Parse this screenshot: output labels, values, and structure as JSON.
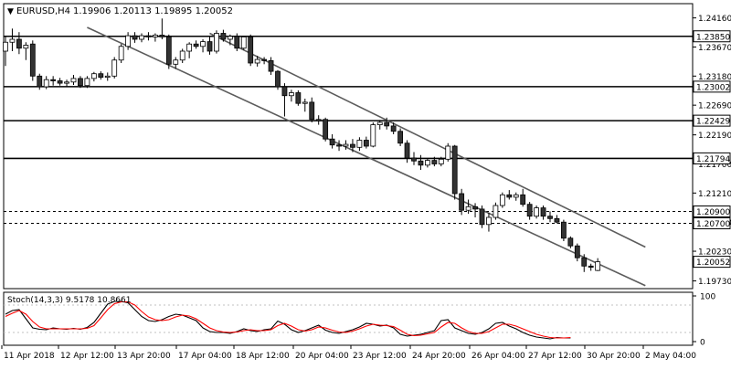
{
  "header": {
    "symbol_label": "EURUSD,H4",
    "ohlc": "1.19906 1.20113 1.19895 1.20052",
    "menu_glyph": "▼"
  },
  "chart_data": [
    {
      "type": "candlestick",
      "symbol": "EURUSD",
      "timeframe": "H4",
      "ylim": [
        1.196,
        1.244
      ],
      "y_ticks": [
        "1.24160",
        "1.23670",
        "1.23180",
        "1.22690",
        "1.22190",
        "1.21700",
        "1.21210",
        "1.20720",
        "1.20230",
        "1.19730"
      ],
      "x_ticks": [
        "11 Apr 2018",
        "12 Apr 12:00",
        "13 Apr 20:00",
        "17 Apr 04:00",
        "18 Apr 12:00",
        "20 Apr 04:00",
        "23 Apr 12:00",
        "24 Apr 20:00",
        "26 Apr 04:00",
        "27 Apr 12:00",
        "30 Apr 20:00",
        "2 May 04:00"
      ],
      "candles": [
        {
          "o": 1.236,
          "h": 1.2385,
          "l": 1.2335,
          "c": 1.2375
        },
        {
          "o": 1.2375,
          "h": 1.2398,
          "l": 1.236,
          "c": 1.238
        },
        {
          "o": 1.238,
          "h": 1.2392,
          "l": 1.2355,
          "c": 1.2365
        },
        {
          "o": 1.2365,
          "h": 1.2375,
          "l": 1.2345,
          "c": 1.237
        },
        {
          "o": 1.2372,
          "h": 1.2378,
          "l": 1.231,
          "c": 1.2318
        },
        {
          "o": 1.2318,
          "h": 1.2322,
          "l": 1.2295,
          "c": 1.23
        },
        {
          "o": 1.23,
          "h": 1.2318,
          "l": 1.2296,
          "c": 1.2312
        },
        {
          "o": 1.2312,
          "h": 1.2318,
          "l": 1.2302,
          "c": 1.231
        },
        {
          "o": 1.231,
          "h": 1.2315,
          "l": 1.2302,
          "c": 1.2306
        },
        {
          "o": 1.2306,
          "h": 1.2312,
          "l": 1.23,
          "c": 1.2308
        },
        {
          "o": 1.2308,
          "h": 1.232,
          "l": 1.2303,
          "c": 1.2314
        },
        {
          "o": 1.2314,
          "h": 1.2318,
          "l": 1.2298,
          "c": 1.2302
        },
        {
          "o": 1.2302,
          "h": 1.2318,
          "l": 1.2298,
          "c": 1.2314
        },
        {
          "o": 1.2314,
          "h": 1.2325,
          "l": 1.2309,
          "c": 1.2322
        },
        {
          "o": 1.2322,
          "h": 1.2326,
          "l": 1.2312,
          "c": 1.2316
        },
        {
          "o": 1.2316,
          "h": 1.2324,
          "l": 1.231,
          "c": 1.2318
        },
        {
          "o": 1.2318,
          "h": 1.235,
          "l": 1.2314,
          "c": 1.2345
        },
        {
          "o": 1.2345,
          "h": 1.2372,
          "l": 1.234,
          "c": 1.2368
        },
        {
          "o": 1.2368,
          "h": 1.2392,
          "l": 1.2362,
          "c": 1.2386
        },
        {
          "o": 1.2386,
          "h": 1.2392,
          "l": 1.2374,
          "c": 1.238
        },
        {
          "o": 1.238,
          "h": 1.239,
          "l": 1.2375,
          "c": 1.2386
        },
        {
          "o": 1.2386,
          "h": 1.2392,
          "l": 1.2378,
          "c": 1.2384
        },
        {
          "o": 1.2384,
          "h": 1.239,
          "l": 1.2376,
          "c": 1.2387
        },
        {
          "o": 1.2387,
          "h": 1.2415,
          "l": 1.238,
          "c": 1.2384
        },
        {
          "o": 1.2384,
          "h": 1.2388,
          "l": 1.233,
          "c": 1.2338
        },
        {
          "o": 1.2338,
          "h": 1.235,
          "l": 1.233,
          "c": 1.2345
        },
        {
          "o": 1.2345,
          "h": 1.2364,
          "l": 1.234,
          "c": 1.236
        },
        {
          "o": 1.236,
          "h": 1.2375,
          "l": 1.2348,
          "c": 1.2372
        },
        {
          "o": 1.2372,
          "h": 1.2378,
          "l": 1.2364,
          "c": 1.2368
        },
        {
          "o": 1.2368,
          "h": 1.238,
          "l": 1.2358,
          "c": 1.2376
        },
        {
          "o": 1.2376,
          "h": 1.2384,
          "l": 1.2354,
          "c": 1.236
        },
        {
          "o": 1.236,
          "h": 1.2395,
          "l": 1.2356,
          "c": 1.239
        },
        {
          "o": 1.239,
          "h": 1.2396,
          "l": 1.2376,
          "c": 1.238
        },
        {
          "o": 1.238,
          "h": 1.2388,
          "l": 1.237,
          "c": 1.2385
        },
        {
          "o": 1.2385,
          "h": 1.239,
          "l": 1.236,
          "c": 1.2365
        },
        {
          "o": 1.2365,
          "h": 1.2384,
          "l": 1.2362,
          "c": 1.2384
        },
        {
          "o": 1.2384,
          "h": 1.2388,
          "l": 1.2335,
          "c": 1.234
        },
        {
          "o": 1.234,
          "h": 1.2352,
          "l": 1.2334,
          "c": 1.2346
        },
        {
          "o": 1.2346,
          "h": 1.235,
          "l": 1.2338,
          "c": 1.2344
        },
        {
          "o": 1.2344,
          "h": 1.235,
          "l": 1.232,
          "c": 1.2326
        },
        {
          "o": 1.2326,
          "h": 1.2328,
          "l": 1.2295,
          "c": 1.23
        },
        {
          "o": 1.23,
          "h": 1.2306,
          "l": 1.225,
          "c": 1.2285
        },
        {
          "o": 1.2285,
          "h": 1.2295,
          "l": 1.2275,
          "c": 1.229
        },
        {
          "o": 1.229,
          "h": 1.2294,
          "l": 1.2268,
          "c": 1.2272
        },
        {
          "o": 1.2272,
          "h": 1.228,
          "l": 1.2258,
          "c": 1.2274
        },
        {
          "o": 1.2274,
          "h": 1.2282,
          "l": 1.224,
          "c": 1.2245
        },
        {
          "o": 1.2245,
          "h": 1.2252,
          "l": 1.2236,
          "c": 1.2245
        },
        {
          "o": 1.2245,
          "h": 1.2248,
          "l": 1.2208,
          "c": 1.2212
        },
        {
          "o": 1.2212,
          "h": 1.222,
          "l": 1.2196,
          "c": 1.2202
        },
        {
          "o": 1.2202,
          "h": 1.221,
          "l": 1.2192,
          "c": 1.22
        },
        {
          "o": 1.22,
          "h": 1.221,
          "l": 1.2194,
          "c": 1.2203
        },
        {
          "o": 1.2203,
          "h": 1.2212,
          "l": 1.219,
          "c": 1.2198
        },
        {
          "o": 1.2198,
          "h": 1.2215,
          "l": 1.2192,
          "c": 1.221
        },
        {
          "o": 1.221,
          "h": 1.2216,
          "l": 1.2196,
          "c": 1.22
        },
        {
          "o": 1.22,
          "h": 1.224,
          "l": 1.2198,
          "c": 1.2236
        },
        {
          "o": 1.2236,
          "h": 1.2244,
          "l": 1.2228,
          "c": 1.224
        },
        {
          "o": 1.224,
          "h": 1.2248,
          "l": 1.2228,
          "c": 1.2234
        },
        {
          "o": 1.2234,
          "h": 1.224,
          "l": 1.222,
          "c": 1.2225
        },
        {
          "o": 1.2225,
          "h": 1.223,
          "l": 1.22,
          "c": 1.2205
        },
        {
          "o": 1.2205,
          "h": 1.221,
          "l": 1.2172,
          "c": 1.218
        },
        {
          "o": 1.218,
          "h": 1.219,
          "l": 1.2168,
          "c": 1.2175
        },
        {
          "o": 1.2175,
          "h": 1.2185,
          "l": 1.216,
          "c": 1.2168
        },
        {
          "o": 1.2168,
          "h": 1.218,
          "l": 1.2164,
          "c": 1.2176
        },
        {
          "o": 1.2176,
          "h": 1.2182,
          "l": 1.2166,
          "c": 1.217
        },
        {
          "o": 1.217,
          "h": 1.2182,
          "l": 1.2166,
          "c": 1.2178
        },
        {
          "o": 1.2178,
          "h": 1.2205,
          "l": 1.2174,
          "c": 1.22
        },
        {
          "o": 1.22,
          "h": 1.2202,
          "l": 1.211,
          "c": 1.212
        },
        {
          "o": 1.212,
          "h": 1.2128,
          "l": 1.2084,
          "c": 1.2092
        },
        {
          "o": 1.2092,
          "h": 1.211,
          "l": 1.2086,
          "c": 1.2098
        },
        {
          "o": 1.2098,
          "h": 1.2104,
          "l": 1.208,
          "c": 1.2094
        },
        {
          "o": 1.2094,
          "h": 1.21,
          "l": 1.2062,
          "c": 1.2068
        },
        {
          "o": 1.2068,
          "h": 1.2088,
          "l": 1.2056,
          "c": 1.208
        },
        {
          "o": 1.208,
          "h": 1.2105,
          "l": 1.2076,
          "c": 1.21
        },
        {
          "o": 1.21,
          "h": 1.2122,
          "l": 1.2096,
          "c": 1.2118
        },
        {
          "o": 1.2118,
          "h": 1.2126,
          "l": 1.211,
          "c": 1.2114
        },
        {
          "o": 1.2114,
          "h": 1.2122,
          "l": 1.2108,
          "c": 1.2118
        },
        {
          "o": 1.2118,
          "h": 1.2128,
          "l": 1.2098,
          "c": 1.2102
        },
        {
          "o": 1.2102,
          "h": 1.2106,
          "l": 1.2076,
          "c": 1.2082
        },
        {
          "o": 1.2082,
          "h": 1.21,
          "l": 1.2078,
          "c": 1.2096
        },
        {
          "o": 1.2096,
          "h": 1.21,
          "l": 1.2076,
          "c": 1.2082
        },
        {
          "o": 1.2082,
          "h": 1.209,
          "l": 1.2072,
          "c": 1.2078
        },
        {
          "o": 1.2078,
          "h": 1.2084,
          "l": 1.207,
          "c": 1.2072
        },
        {
          "o": 1.2072,
          "h": 1.2076,
          "l": 1.204,
          "c": 1.2045
        },
        {
          "o": 1.2045,
          "h": 1.2048,
          "l": 1.2028,
          "c": 1.2032
        },
        {
          "o": 1.2032,
          "h": 1.2036,
          "l": 1.2006,
          "c": 1.2012
        },
        {
          "o": 1.2012,
          "h": 1.2018,
          "l": 1.1988,
          "c": 1.1998
        },
        {
          "o": 1.1998,
          "h": 1.2002,
          "l": 1.199,
          "c": 1.1996
        },
        {
          "o": 1.19906,
          "h": 1.20113,
          "l": 1.19895,
          "c": 1.20052
        }
      ],
      "levels": [
        {
          "value": 1.2385,
          "label": "1.23850",
          "style": "solid"
        },
        {
          "value": 1.23002,
          "label": "1.23002",
          "style": "solid"
        },
        {
          "value": 1.22429,
          "label": "1.22429",
          "style": "solid"
        },
        {
          "value": 1.21794,
          "label": "1.21794",
          "style": "solid"
        },
        {
          "value": 1.209,
          "label": "1.20900",
          "style": "dashed"
        },
        {
          "value": 1.207,
          "label": "1.20700",
          "style": "dashed"
        }
      ],
      "current_price": {
        "value": 1.20052,
        "label": "1.20052"
      },
      "channel": {
        "upper": [
          {
            "bar": 30,
            "price": 1.239
          },
          {
            "bar": 94,
            "price": 1.203
          }
        ],
        "lower": [
          {
            "bar": 12,
            "price": 1.24
          },
          {
            "bar": 94,
            "price": 1.1965
          }
        ]
      }
    },
    {
      "type": "line",
      "indicator_label": "Stoch(14,3,3) 9.5178 10.8661",
      "ylim": [
        0,
        100
      ],
      "y_ticks": [
        "100",
        "0"
      ],
      "levels": [
        80,
        20
      ],
      "series": [
        {
          "values": [
            60,
            68,
            70,
            50,
            30,
            27,
            26,
            30,
            28,
            27,
            29,
            27,
            31,
            42,
            62,
            82,
            88,
            88,
            85,
            70,
            55,
            46,
            44,
            48,
            55,
            60,
            58,
            52,
            46,
            30,
            22,
            20,
            20,
            18,
            22,
            28,
            24,
            22,
            26,
            28,
            45,
            38,
            26,
            20,
            24,
            30,
            36,
            25,
            20,
            18,
            22,
            26,
            32,
            40,
            38,
            34,
            36,
            30,
            16,
            12,
            14,
            16,
            20,
            24,
            46,
            48,
            30,
            24,
            18,
            16,
            20,
            28,
            40,
            42,
            34,
            28,
            20,
            14,
            10,
            8,
            6,
            9,
            8,
            8
          ]
        },
        {
          "values": [
            55,
            62,
            68,
            60,
            44,
            32,
            28,
            28,
            28,
            28,
            28,
            28,
            29,
            35,
            52,
            70,
            83,
            87,
            87,
            80,
            66,
            54,
            48,
            46,
            48,
            54,
            58,
            56,
            50,
            40,
            30,
            24,
            21,
            20,
            21,
            24,
            26,
            24,
            24,
            26,
            35,
            40,
            34,
            26,
            23,
            26,
            32,
            30,
            25,
            21,
            20,
            23,
            28,
            34,
            38,
            36,
            35,
            33,
            25,
            16,
            13,
            14,
            17,
            20,
            32,
            42,
            40,
            30,
            22,
            18,
            18,
            22,
            30,
            38,
            38,
            34,
            28,
            22,
            16,
            12,
            9,
            8,
            8,
            9
          ]
        }
      ]
    }
  ],
  "colors": {
    "background": "#ffffff",
    "ink": "#000000",
    "bullish_fill": "#ffffff",
    "bearish_fill": "#333333",
    "channel": "#5c5c5c",
    "stoch_main": "#000000",
    "stoch_signal": "#ff0000",
    "label_fill": "#ffffff",
    "current_fill": "#ffffff"
  }
}
